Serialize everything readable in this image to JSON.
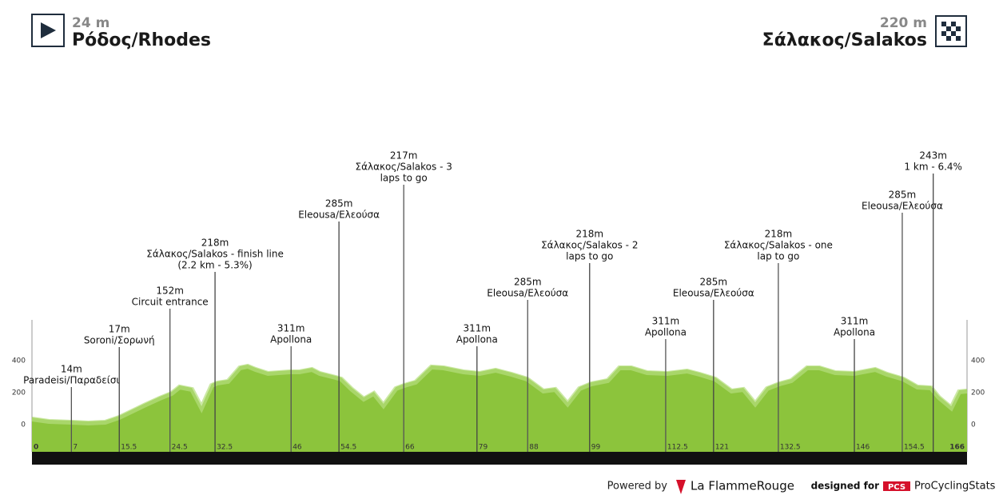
{
  "chart_data": {
    "type": "area",
    "start": {
      "altitude": "24 m",
      "name": "Ρόδος/Rhodes"
    },
    "finish": {
      "altitude": "220 m",
      "name": "Σάλακος/Salakos"
    },
    "x": [
      0,
      3,
      7,
      10,
      13,
      15.5,
      19.9,
      22.7,
      24.8,
      26.2,
      28.4,
      30.1,
      31.9,
      32.9,
      34.8,
      36.9,
      38.3,
      39.7,
      41.9,
      45.8,
      47.5,
      49.7,
      51.1,
      53.9,
      54.9,
      56.8,
      58.9,
      60.7,
      62.4,
      64.6,
      66.1,
      68.1,
      70.9,
      73.1,
      76.6,
      79.5,
      82.3,
      85.1,
      87.9,
      90.8,
      92.9,
      95.1,
      97.2,
      99.3,
      102.2,
      104.3,
      106.4,
      109.2,
      112.8,
      116.3,
      118.5,
      121.3,
      124.2,
      126.3,
      128.4,
      130.5,
      132.7,
      134.8,
      137.6,
      139.8,
      142.6,
      146,
      149.7,
      151.8,
      154.7,
      157.2,
      159.6,
      161,
      163.2,
      164.6,
      166
    ],
    "values": [
      45,
      30,
      25,
      20,
      25,
      55,
      130,
      175,
      205,
      245,
      230,
      115,
      255,
      270,
      280,
      365,
      375,
      355,
      330,
      340,
      340,
      355,
      330,
      305,
      295,
      230,
      170,
      205,
      130,
      235,
      255,
      275,
      370,
      365,
      340,
      330,
      350,
      325,
      295,
      220,
      230,
      140,
      235,
      265,
      285,
      365,
      365,
      335,
      330,
      345,
      325,
      295,
      220,
      230,
      140,
      235,
      265,
      285,
      365,
      365,
      335,
      330,
      355,
      325,
      295,
      245,
      240,
      180,
      115,
      215,
      220
    ],
    "color": "#8cc43c",
    "xlim": [
      0,
      166
    ],
    "ylim": [
      -170,
      655
    ],
    "yticks": [
      0,
      200,
      400
    ],
    "xticks": [
      0,
      7,
      15.5,
      24.5,
      32.5,
      46,
      54.5,
      66,
      79,
      88,
      99,
      112.5,
      121,
      132.5,
      146,
      154.5,
      166
    ],
    "annotations": [
      {
        "km": 7,
        "altitude": "14m",
        "lines": [
          "Paradeisi/Παραδείσι"
        ]
      },
      {
        "km": 15.5,
        "altitude": "17m",
        "lines": [
          "Soroni/Σορωνή"
        ]
      },
      {
        "km": 24.5,
        "altitude": "152m",
        "lines": [
          "Circuit entrance"
        ]
      },
      {
        "km": 32.5,
        "altitude": "218m",
        "lines": [
          "Σάλακος/Salakos - finish line",
          "(2.2 km - 5.3%)"
        ]
      },
      {
        "km": 46,
        "altitude": "311m",
        "lines": [
          "Apollona"
        ]
      },
      {
        "km": 54.5,
        "altitude": "285m",
        "lines": [
          "Eleousa/Ελεούσα"
        ]
      },
      {
        "km": 66,
        "altitude": "217m",
        "lines": [
          "Σάλακος/Salakos - 3",
          "laps to go"
        ]
      },
      {
        "km": 79,
        "altitude": "311m",
        "lines": [
          "Apollona"
        ]
      },
      {
        "km": 88,
        "altitude": "285m",
        "lines": [
          "Eleousa/Ελεούσα"
        ]
      },
      {
        "km": 99,
        "altitude": "218m",
        "lines": [
          "Σάλακος/Salakos - 2",
          "laps to go"
        ]
      },
      {
        "km": 112.5,
        "altitude": "311m",
        "lines": [
          "Apollona"
        ]
      },
      {
        "km": 121,
        "altitude": "285m",
        "lines": [
          "Eleousa/Ελεούσα"
        ]
      },
      {
        "km": 132.5,
        "altitude": "218m",
        "lines": [
          "Σάλακος/Salakos - one",
          "lap to go"
        ]
      },
      {
        "km": 146,
        "altitude": "311m",
        "lines": [
          "Apollona"
        ]
      },
      {
        "km": 154.5,
        "altitude": "285m",
        "lines": [
          "Eleousa/Ελεούσα"
        ]
      },
      {
        "km": 160,
        "altitude": "243m",
        "lines": [
          "1 km - 6.4%"
        ]
      }
    ],
    "footer": {
      "powered": "Powered by",
      "brand": "La FlammeRouge",
      "designed": "designed for",
      "pcs": "PCS",
      "pcs_name": "ProCyclingStats"
    }
  }
}
